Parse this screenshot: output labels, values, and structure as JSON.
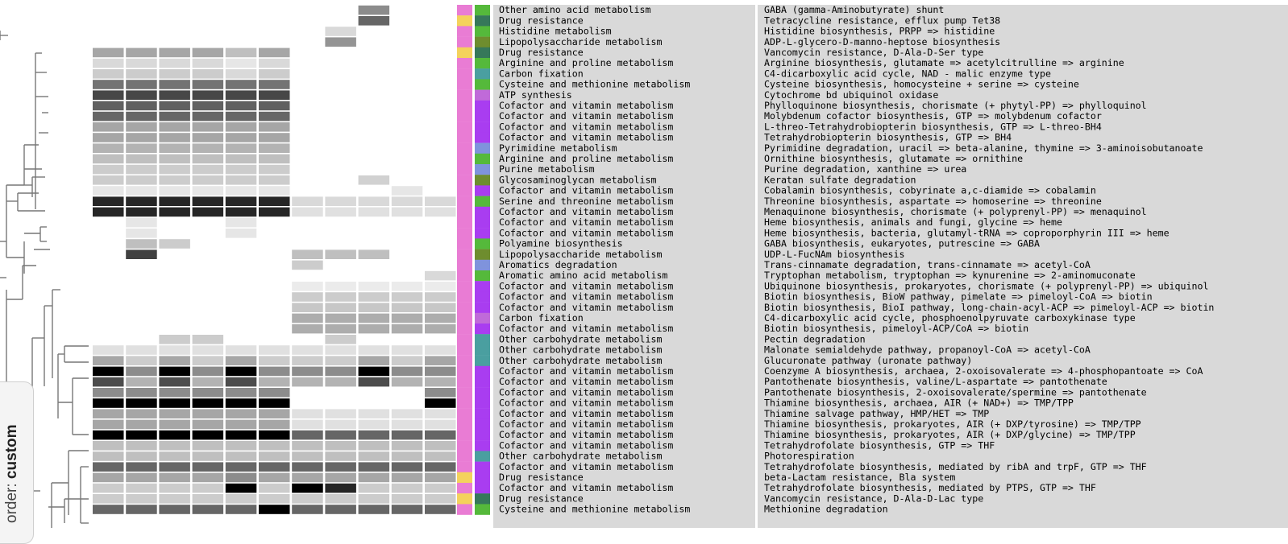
{
  "order_control": {
    "prefix": "order: ",
    "value": "custom"
  },
  "category_colors": {
    "Amino acid metabolism": "#55b93b",
    "Drug resistance": "#f4d25c",
    "Energy metabolism": "#c06ad9",
    "Carbohydrate metabolism": "#4a9fa0",
    "Cofactor and vitamin metabolism": "#a93df0",
    "Nucleotide metabolism": "#7f93dc",
    "Glycan metabolism": "#6e8d2e",
    "Xenobiotics metabolism": "#7f93dc",
    "Biosynthesis of other secondary metabolites": "#36785a"
  },
  "group_colors": {
    "pink": "#e97cd4",
    "yellow": "#f4d25c"
  },
  "chart_data": {
    "type": "heatmap",
    "columns": 11,
    "value_scale": "0 = white (absent), 1 = black (fully complete)",
    "rows": [
      {
        "cat": "Other amino acid metabolism",
        "module": "GABA (gamma-Aminobutyrate) shunt",
        "g": "pink",
        "c1": "#55b93b",
        "v": [
          0,
          0,
          0,
          0,
          0,
          0,
          0,
          0,
          0.45,
          0,
          0
        ]
      },
      {
        "cat": "Drug resistance",
        "module": "Tetracycline resistance, efflux pump Tet38",
        "g": "yellow",
        "c1": "#36785a",
        "v": [
          0,
          0,
          0,
          0,
          0,
          0,
          0,
          0,
          0.6,
          0,
          0
        ]
      },
      {
        "cat": "Histidine metabolism",
        "module": "Histidine biosynthesis, PRPP => histidine",
        "g": "pink",
        "c1": "#55b93b",
        "v": [
          0,
          0,
          0,
          0,
          0,
          0,
          0,
          0.15,
          0,
          0,
          0
        ]
      },
      {
        "cat": "Lipopolysaccharide metabolism",
        "module": "ADP-L-glycero-D-manno-heptose biosynthesis",
        "g": "pink",
        "c1": "#6e8d2e",
        "v": [
          0,
          0,
          0,
          0,
          0,
          0,
          0,
          0.42,
          0,
          0,
          0
        ]
      },
      {
        "cat": "Drug resistance",
        "module": "Vancomycin resistance, D-Ala-D-Ser type",
        "g": "yellow",
        "c1": "#36785a",
        "v": [
          0.35,
          0.35,
          0.35,
          0.35,
          0.25,
          0.35,
          0,
          0,
          0,
          0,
          0
        ]
      },
      {
        "cat": "Arginine and proline metabolism",
        "module": "Arginine biosynthesis, glutamate => acetylcitrulline => arginine",
        "g": "pink",
        "c1": "#55b93b",
        "v": [
          0.15,
          0.15,
          0.15,
          0.15,
          0.1,
          0.15,
          0,
          0,
          0,
          0,
          0
        ]
      },
      {
        "cat": "Carbon fixation",
        "module": "C4-dicarboxylic acid cycle, NAD - malic enzyme type",
        "g": "pink",
        "c1": "#4a9fa0",
        "v": [
          0.2,
          0.2,
          0.2,
          0.2,
          0.15,
          0.2,
          0,
          0,
          0,
          0,
          0
        ]
      },
      {
        "cat": "Cysteine and methionine metabolism",
        "module": "Cysteine biosynthesis, homocysteine + serine => cysteine",
        "g": "pink",
        "c1": "#55b93b",
        "v": [
          0.55,
          0.55,
          0.55,
          0.55,
          0.55,
          0.55,
          0,
          0,
          0,
          0,
          0
        ]
      },
      {
        "cat": "ATP synthesis",
        "module": "Cytochrome bd ubiquinol oxidase",
        "g": "pink",
        "c1": "#c06ad9",
        "v": [
          0.72,
          0.72,
          0.72,
          0.72,
          0.72,
          0.72,
          0,
          0,
          0,
          0,
          0
        ]
      },
      {
        "cat": "Cofactor and vitamin metabolism",
        "module": "Phylloquinone biosynthesis, chorismate (+ phytyl-PP) => phylloquinol",
        "g": "pink",
        "c1": "#a93df0",
        "v": [
          0.62,
          0.62,
          0.62,
          0.62,
          0.62,
          0.62,
          0,
          0,
          0,
          0,
          0
        ]
      },
      {
        "cat": "Cofactor and vitamin metabolism",
        "module": "Molybdenum cofactor biosynthesis, GTP => molybdenum cofactor",
        "g": "pink",
        "c1": "#a93df0",
        "v": [
          0.6,
          0.6,
          0.6,
          0.6,
          0.6,
          0.6,
          0,
          0,
          0,
          0,
          0
        ]
      },
      {
        "cat": "Cofactor and vitamin metabolism",
        "module": "L-threo-Tetrahydrobiopterin biosynthesis, GTP => L-threo-BH4",
        "g": "pink",
        "c1": "#a93df0",
        "v": [
          0.35,
          0.35,
          0.35,
          0.35,
          0.35,
          0.35,
          0,
          0,
          0,
          0,
          0
        ]
      },
      {
        "cat": "Cofactor and vitamin metabolism",
        "module": "Tetrahydrobiopterin biosynthesis, GTP => BH4",
        "g": "pink",
        "c1": "#a93df0",
        "v": [
          0.35,
          0.35,
          0.35,
          0.35,
          0.35,
          0.35,
          0,
          0,
          0,
          0,
          0
        ]
      },
      {
        "cat": "Pyrimidine metabolism",
        "module": "Pyrimidine degradation, uracil => beta-alanine, thymine => 3-aminoisobutanoate",
        "g": "pink",
        "c1": "#7f93dc",
        "v": [
          0.3,
          0.3,
          0.3,
          0.3,
          0.3,
          0.3,
          0,
          0,
          0,
          0,
          0
        ]
      },
      {
        "cat": "Arginine and proline metabolism",
        "module": "Ornithine biosynthesis, glutamate => ornithine",
        "g": "pink",
        "c1": "#55b93b",
        "v": [
          0.25,
          0.25,
          0.25,
          0.25,
          0.25,
          0.25,
          0,
          0,
          0,
          0,
          0
        ]
      },
      {
        "cat": "Purine metabolism",
        "module": "Purine degradation, xanthine => urea",
        "g": "pink",
        "c1": "#7f93dc",
        "v": [
          0.2,
          0.2,
          0.2,
          0.2,
          0.2,
          0.2,
          0,
          0,
          0,
          0,
          0
        ]
      },
      {
        "cat": "Glycosaminoglycan metabolism",
        "module": "Keratan sulfate degradation",
        "g": "pink",
        "c1": "#6e8d2e",
        "v": [
          0.2,
          0.2,
          0.2,
          0.2,
          0.2,
          0.2,
          0,
          0,
          0.18,
          0,
          0
        ]
      },
      {
        "cat": "Cofactor and vitamin metabolism",
        "module": "Cobalamin biosynthesis, cobyrinate a,c-diamide => cobalamin",
        "g": "pink",
        "c1": "#a93df0",
        "v": [
          0.1,
          0.1,
          0.1,
          0.1,
          0.1,
          0.1,
          0,
          0,
          0,
          0.1,
          0
        ]
      },
      {
        "cat": "Serine and threonine metabolism",
        "module": "Threonine biosynthesis, aspartate => homoserine => threonine",
        "g": "pink",
        "c1": "#55b93b",
        "v": [
          0.85,
          0.85,
          0.85,
          0.85,
          0.85,
          0.85,
          0.15,
          0.15,
          0.15,
          0.15,
          0.15
        ]
      },
      {
        "cat": "Cofactor and vitamin metabolism",
        "module": "Menaquinone biosynthesis, chorismate (+ polyprenyl-PP) => menaquinol",
        "g": "pink",
        "c1": "#a93df0",
        "v": [
          0.85,
          0.85,
          0.85,
          0.85,
          0.85,
          0.85,
          0.12,
          0.12,
          0.12,
          0.12,
          0.12
        ]
      },
      {
        "cat": "Cofactor and vitamin metabolism",
        "module": "Heme biosynthesis, animals and fungi, glycine => heme",
        "g": "pink",
        "c1": "#a93df0",
        "v": [
          0,
          0.1,
          0,
          0,
          0.1,
          0,
          0,
          0,
          0,
          0,
          0
        ]
      },
      {
        "cat": "Cofactor and vitamin metabolism",
        "module": "Heme biosynthesis, bacteria, glutamyl-tRNA => coproporphyrin III => heme",
        "g": "pink",
        "c1": "#a93df0",
        "v": [
          0,
          0.1,
          0,
          0,
          0.1,
          0,
          0,
          0,
          0,
          0,
          0
        ]
      },
      {
        "cat": "Polyamine biosynthesis",
        "module": "GABA biosynthesis, eukaryotes, putrescine => GABA",
        "g": "pink",
        "c1": "#55b93b",
        "v": [
          0,
          0.25,
          0.2,
          0,
          0,
          0,
          0,
          0,
          0,
          0,
          0
        ]
      },
      {
        "cat": "Lipopolysaccharide metabolism",
        "module": "UDP-L-FucNAm biosynthesis",
        "g": "pink",
        "c1": "#6e8d2e",
        "v": [
          0,
          0.75,
          0,
          0,
          0,
          0,
          0.25,
          0.25,
          0.25,
          0,
          0
        ]
      },
      {
        "cat": "Aromatics degradation",
        "module": "Trans-cinnamate degradation, trans-cinnamate => acetyl-CoA",
        "g": "pink",
        "c1": "#7f93dc",
        "v": [
          0,
          0,
          0,
          0,
          0,
          0,
          0.2,
          0,
          0,
          0,
          0
        ]
      },
      {
        "cat": "Aromatic amino acid metabolism",
        "module": "Tryptophan metabolism, tryptophan => kynurenine => 2-aminomuconate",
        "g": "pink",
        "c1": "#55b93b",
        "v": [
          0,
          0,
          0,
          0,
          0,
          0,
          0,
          0,
          0,
          0,
          0.15
        ]
      },
      {
        "cat": "Cofactor and vitamin metabolism",
        "module": "Ubiquinone biosynthesis, prokaryotes, chorismate (+ polyprenyl-PP) => ubiquinol",
        "g": "pink",
        "c1": "#a93df0",
        "v": [
          0,
          0,
          0,
          0,
          0,
          0,
          0.08,
          0.08,
          0.08,
          0.08,
          0.08
        ]
      },
      {
        "cat": "Cofactor and vitamin metabolism",
        "module": "Biotin biosynthesis, BioW pathway, pimelate => pimeloyl-CoA => biotin",
        "g": "pink",
        "c1": "#a93df0",
        "v": [
          0,
          0,
          0,
          0,
          0,
          0,
          0.2,
          0.2,
          0.2,
          0.2,
          0.2
        ]
      },
      {
        "cat": "Cofactor and vitamin metabolism",
        "module": "Biotin biosynthesis, BioI pathway, long-chain-acyl-ACP => pimeloyl-ACP => biotin",
        "g": "pink",
        "c1": "#a93df0",
        "v": [
          0,
          0,
          0,
          0,
          0,
          0,
          0.22,
          0.22,
          0.22,
          0.22,
          0.22
        ]
      },
      {
        "cat": "Carbon fixation",
        "module": "C4-dicarboxylic acid cycle, phosphoenolpyruvate carboxykinase type",
        "g": "pink",
        "c1": "#c06ad9",
        "v": [
          0,
          0,
          0,
          0,
          0,
          0,
          0.32,
          0.32,
          0.32,
          0.32,
          0.32
        ]
      },
      {
        "cat": "Cofactor and vitamin metabolism",
        "module": "Biotin biosynthesis, pimeloyl-ACP/CoA => biotin",
        "g": "pink",
        "c1": "#a93df0",
        "v": [
          0,
          0,
          0,
          0,
          0,
          0,
          0.32,
          0.32,
          0.32,
          0.32,
          0.32
        ]
      },
      {
        "cat": "Other carbohydrate metabolism",
        "module": "Pectin degradation",
        "g": "pink",
        "c1": "#4a9fa0",
        "v": [
          0,
          0,
          0.2,
          0.2,
          0,
          0,
          0,
          0.2,
          0,
          0,
          0
        ]
      },
      {
        "cat": "Other carbohydrate metabolism",
        "module": "Malonate semialdehyde pathway, propanoyl-CoA => acetyl-CoA",
        "g": "pink",
        "c1": "#4a9fa0",
        "v": [
          0.12,
          0.12,
          0.12,
          0.12,
          0.12,
          0.12,
          0.12,
          0.12,
          0.12,
          0.12,
          0.12
        ]
      },
      {
        "cat": "Other carbohydrate metabolism",
        "module": "Glucuronate pathway (uronate pathway)",
        "g": "pink",
        "c1": "#4a9fa0",
        "v": [
          0.35,
          0.2,
          0.35,
          0.2,
          0.35,
          0.2,
          0.2,
          0.2,
          0.35,
          0.2,
          0.35
        ]
      },
      {
        "cat": "Cofactor and vitamin metabolism",
        "module": "Coenzyme A biosynthesis, archaea, 2-oxoisovalerate => 4-phosphopantoate => CoA",
        "g": "pink",
        "c1": "#a93df0",
        "v": [
          1,
          0.45,
          1,
          0.45,
          1,
          0.45,
          0.45,
          0.45,
          1,
          0.45,
          0.45
        ]
      },
      {
        "cat": "Cofactor and vitamin metabolism",
        "module": "Pantothenate biosynthesis, valine/L-aspartate => pantothenate",
        "g": "pink",
        "c1": "#a93df0",
        "v": [
          0.7,
          0.3,
          0.7,
          0.3,
          0.7,
          0.3,
          0.3,
          0.3,
          0.7,
          0.3,
          0.3
        ]
      },
      {
        "cat": "Cofactor and vitamin metabolism",
        "module": "Pantothenate biosynthesis, 2-oxoisovalerate/spermine => pantothenate",
        "g": "pink",
        "c1": "#a93df0",
        "v": [
          0.45,
          0.45,
          0.45,
          0.45,
          0.45,
          0.45,
          0,
          0,
          0,
          0,
          0.45
        ]
      },
      {
        "cat": "Cofactor and vitamin metabolism",
        "module": "Thiamine biosynthesis, archaea, AIR (+ NAD+) => TMP/TPP",
        "g": "pink",
        "c1": "#a93df0",
        "v": [
          1,
          1,
          1,
          1,
          1,
          1,
          0,
          0,
          0,
          0,
          1
        ]
      },
      {
        "cat": "Cofactor and vitamin metabolism",
        "module": "Thiamine salvage pathway, HMP/HET => TMP",
        "g": "pink",
        "c1": "#a93df0",
        "v": [
          0.35,
          0.35,
          0.35,
          0.35,
          0.35,
          0.35,
          0.12,
          0.12,
          0.12,
          0.12,
          0.12
        ]
      },
      {
        "cat": "Cofactor and vitamin metabolism",
        "module": "Thiamine biosynthesis, prokaryotes, AIR (+ DXP/tyrosine) => TMP/TPP",
        "g": "pink",
        "c1": "#a93df0",
        "v": [
          0.35,
          0.35,
          0.35,
          0.35,
          0.35,
          0.35,
          0.12,
          0.12,
          0.12,
          0.12,
          0.12
        ]
      },
      {
        "cat": "Cofactor and vitamin metabolism",
        "module": "Thiamine biosynthesis, prokaryotes, AIR (+ DXP/glycine) => TMP/TPP",
        "g": "pink",
        "c1": "#a93df0",
        "v": [
          1,
          1,
          1,
          1,
          1,
          1,
          0.6,
          0.6,
          0.6,
          0.6,
          0.6
        ]
      },
      {
        "cat": "Cofactor and vitamin metabolism",
        "module": "Tetrahydrofolate biosynthesis, GTP => THF",
        "g": "pink",
        "c1": "#a93df0",
        "v": [
          0.25,
          0.25,
          0.25,
          0.25,
          0.25,
          0.25,
          0.25,
          0.25,
          0.25,
          0.25,
          0.25
        ]
      },
      {
        "cat": "Other carbohydrate metabolism",
        "module": "Photorespiration",
        "g": "pink",
        "c1": "#4a9fa0",
        "v": [
          0.25,
          0.25,
          0.25,
          0.25,
          0.25,
          0.25,
          0.25,
          0.25,
          0.25,
          0.25,
          0.25
        ]
      },
      {
        "cat": "Cofactor and vitamin metabolism",
        "module": "Tetrahydrofolate biosynthesis, mediated by ribA and trpF, GTP => THF",
        "g": "pink",
        "c1": "#a93df0",
        "v": [
          0.6,
          0.6,
          0.6,
          0.6,
          0.6,
          0.6,
          0.6,
          0.6,
          0.6,
          0.6,
          0.6
        ]
      },
      {
        "cat": "Drug resistance",
        "module": "beta-Lactam resistance, Bla system",
        "g": "yellow",
        "c1": "#a93df0",
        "v": [
          0.35,
          0.35,
          0.35,
          0.35,
          0.45,
          0.35,
          0.35,
          0.35,
          0.35,
          0.35,
          0.35
        ]
      },
      {
        "cat": "Cofactor and vitamin metabolism",
        "module": "Tetrahydrofolate biosynthesis, mediated by PTPS, GTP => THF",
        "g": "pink",
        "c1": "#a93df0",
        "v": [
          0.2,
          0.2,
          0.2,
          0.2,
          1,
          0.2,
          1,
          0.85,
          0.2,
          0.2,
          0.2
        ]
      },
      {
        "cat": "Drug resistance",
        "module": "Vancomycin resistance, D-Ala-D-Lac type",
        "g": "yellow",
        "c1": "#36785a",
        "v": [
          0.2,
          0.2,
          0.2,
          0.2,
          0.2,
          0.2,
          0.2,
          0.2,
          0.2,
          0.2,
          0.2
        ]
      },
      {
        "cat": "Cysteine and methionine metabolism",
        "module": "Methionine degradation",
        "g": "pink",
        "c1": "#55b93b",
        "v": [
          0.6,
          0.6,
          0.6,
          0.6,
          0.6,
          1,
          0.6,
          0.6,
          0.6,
          0.6,
          0.6
        ]
      }
    ]
  }
}
